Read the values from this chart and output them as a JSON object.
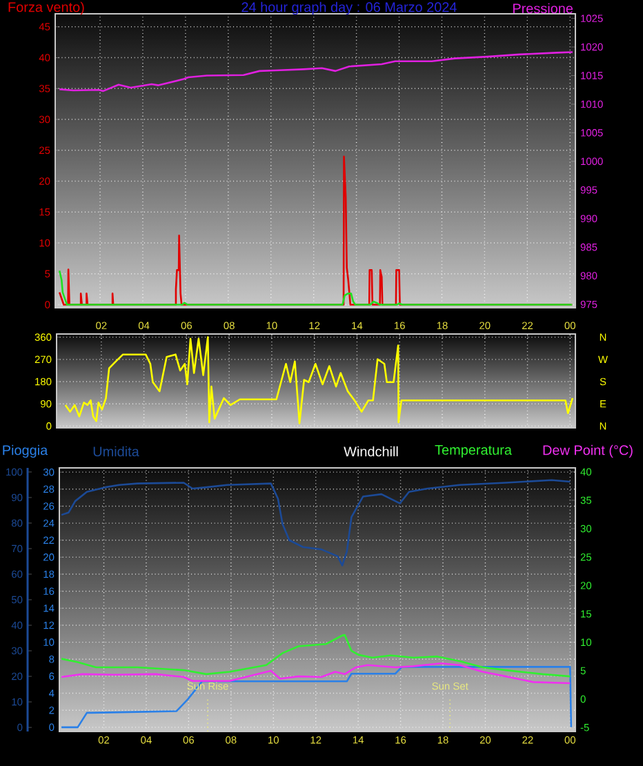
{
  "chart_data": [
    {
      "type": "line",
      "title": "24 hour graph day : 06 Marzo 2024",
      "ylabel": "Forza vento)",
      "y2label": "Pressione",
      "xlim": [
        "2024-03-05T23:54",
        "2024-03-07T00:15"
      ],
      "xticks": [
        {
          "value": "2024-03-06T02:00",
          "label": null
        },
        {
          "value": "2024-03-06T04:00",
          "label": null
        },
        {
          "value": "2024-03-06T06:00",
          "label": null
        },
        {
          "value": "2024-03-06T08:00",
          "label": null
        },
        {
          "value": "2024-03-06T10:00",
          "label": null
        },
        {
          "value": "2024-03-06T12:00",
          "label": null
        },
        {
          "value": "2024-03-06T14:00",
          "label": null
        },
        {
          "value": "2024-03-06T16:00",
          "label": null
        },
        {
          "value": "2024-03-06T18:00",
          "label": null
        },
        {
          "value": "2024-03-06T20:00",
          "label": null
        },
        {
          "value": "2024-03-06T22:00",
          "label": null
        },
        {
          "value": "2024-03-07T00:00",
          "label": null
        }
      ],
      "tick_labels": "y",
      "ylim": [
        -0.5,
        47.1
      ],
      "yticks": [
        0,
        5,
        10,
        15,
        20,
        25,
        30,
        35,
        40,
        45
      ],
      "y2lim": [
        974.4,
        1025.8
      ],
      "y2ticks": [
        975,
        980,
        985,
        990,
        995,
        1000,
        1005,
        1010,
        1015,
        1020,
        1025
      ],
      "grid": true,
      "series": [
        {
          "color": "#e00000",
          "x": [
            "2024-03-06T00:06",
            "2024-03-06T00:18",
            "2024-03-06T00:30",
            "2024-03-06T00:31",
            "2024-03-06T00:34",
            "2024-03-06T01:06",
            "2024-03-06T01:06",
            "2024-03-06T01:09",
            "2024-03-06T01:22",
            "2024-03-06T01:22",
            "2024-03-06T01:25",
            "2024-03-06T02:35",
            "2024-03-06T02:35",
            "2024-03-06T02:37",
            "2024-03-06T05:33",
            "2024-03-06T05:33",
            "2024-03-06T05:36",
            "2024-03-06T05:41",
            "2024-03-06T05:42",
            "2024-03-06T05:46",
            "2024-03-06T05:49",
            "2024-03-06T13:24",
            "2024-03-06T13:25",
            "2024-03-06T13:30",
            "2024-03-06T13:33",
            "2024-03-06T13:37",
            "2024-03-06T13:43",
            "2024-03-06T14:36",
            "2024-03-06T14:37",
            "2024-03-06T14:43",
            "2024-03-06T14:45",
            "2024-03-06T15:06",
            "2024-03-06T15:07",
            "2024-03-06T15:11",
            "2024-03-06T15:13",
            "2024-03-06T15:51",
            "2024-03-06T15:52",
            "2024-03-06T16:00",
            "2024-03-06T16:02",
            "2024-03-07T00:06"
          ],
          "values": [
            2,
            0,
            0,
            5.7,
            0,
            0,
            1.8,
            0,
            0,
            1.8,
            0,
            0,
            1.8,
            0,
            0,
            2.5,
            5.6,
            5.6,
            11.2,
            1.8,
            0,
            0,
            24,
            17.4,
            6,
            4,
            0,
            0,
            5.6,
            5.6,
            0,
            0,
            5.6,
            4.5,
            0,
            0,
            5.6,
            5.6,
            0,
            0
          ]
        },
        {
          "color": "#20e020",
          "x": [
            "2024-03-06T00:06",
            "2024-03-06T00:12",
            "2024-03-06T00:15",
            "2024-03-06T00:21",
            "2024-03-06T00:27",
            "2024-03-06T05:51",
            "2024-03-06T05:57",
            "2024-03-06T06:06",
            "2024-03-06T13:21",
            "2024-03-06T13:27",
            "2024-03-06T13:36",
            "2024-03-06T13:45",
            "2024-03-06T13:51",
            "2024-03-06T13:57",
            "2024-03-06T14:39",
            "2024-03-06T14:48",
            "2024-03-06T14:57",
            "2024-03-06T15:06",
            "2024-03-06T15:54",
            "2024-03-06T16:00",
            "2024-03-06T16:09",
            "2024-03-07T00:06"
          ],
          "values": [
            5.5,
            4,
            2,
            1,
            0,
            0,
            0.3,
            0,
            0,
            1.5,
            1.8,
            1.8,
            0.5,
            0,
            0,
            0.5,
            0.3,
            0,
            0,
            0.2,
            0,
            0
          ]
        },
        {
          "color": "#e020e0",
          "axis": "y2",
          "x": [
            "2024-03-06T00:06",
            "2024-03-06T00:45",
            "2024-03-06T01:56",
            "2024-03-06T02:09",
            "2024-03-06T02:52",
            "2024-03-06T03:26",
            "2024-03-06T04:25",
            "2024-03-06T04:44",
            "2024-03-06T05:55",
            "2024-03-06T06:08",
            "2024-03-06T07:00",
            "2024-03-06T08:43",
            "2024-03-06T09:28",
            "2024-03-06T10:13",
            "2024-03-06T11:31",
            "2024-03-06T12:23",
            "2024-03-06T13:01",
            "2024-03-06T13:40",
            "2024-03-06T15:11",
            "2024-03-06T15:49",
            "2024-03-06T17:32",
            "2024-03-06T18:37",
            "2024-03-06T20:08",
            "2024-03-06T21:38",
            "2024-03-06T23:22",
            "2024-03-07T00:07"
          ],
          "values": [
            1012.6,
            1012.4,
            1012.5,
            1012.3,
            1013.4,
            1012.9,
            1013.5,
            1013.3,
            1014.4,
            1014.7,
            1015.0,
            1015.1,
            1015.8,
            1015.9,
            1016.1,
            1016.3,
            1015.8,
            1016.6,
            1017.0,
            1017.5,
            1017.5,
            1018.0,
            1018.3,
            1018.7,
            1019.0,
            1019.1
          ]
        }
      ]
    },
    {
      "type": "line",
      "xlim": [
        "2024-03-05T23:54",
        "2024-03-07T00:15"
      ],
      "xticks": [
        {
          "value": "2024-03-06T02:00",
          "label": "02"
        },
        {
          "value": "2024-03-06T04:00",
          "label": "04"
        },
        {
          "value": "2024-03-06T06:00",
          "label": "06"
        },
        {
          "value": "2024-03-06T08:00",
          "label": "08"
        },
        {
          "value": "2024-03-06T10:00",
          "label": "10"
        },
        {
          "value": "2024-03-06T12:00",
          "label": "12"
        },
        {
          "value": "2024-03-06T14:00",
          "label": "14"
        },
        {
          "value": "2024-03-06T16:00",
          "label": "16"
        },
        {
          "value": "2024-03-06T18:00",
          "label": "18"
        },
        {
          "value": "2024-03-06T20:00",
          "label": "20"
        },
        {
          "value": "2024-03-06T22:00",
          "label": "22"
        },
        {
          "value": "2024-03-07T00:00",
          "label": "00"
        }
      ],
      "ylim": [
        -7.4,
        373
      ],
      "yticks": [
        0,
        90,
        180,
        270,
        360
      ],
      "grid": true,
      "annotations": [
        "N",
        "W",
        "S",
        "E",
        "N"
      ],
      "series": [
        {
          "color": "#ffff00",
          "x": [
            "2024-03-06T00:19",
            "2024-03-06T00:32",
            "2024-03-06T00:45",
            "2024-03-06T00:58",
            "2024-03-06T01:11",
            "2024-03-06T01:21",
            "2024-03-06T01:30",
            "2024-03-06T01:37",
            "2024-03-06T01:46",
            "2024-03-06T01:52",
            "2024-03-06T02:02",
            "2024-03-06T02:13",
            "2024-03-06T02:22",
            "2024-03-06T02:41",
            "2024-03-06T03:01",
            "2024-03-06T04:05",
            "2024-03-06T04:18",
            "2024-03-06T04:25",
            "2024-03-06T04:44",
            "2024-03-06T05:04",
            "2024-03-06T05:29",
            "2024-03-06T05:42",
            "2024-03-06T05:55",
            "2024-03-06T06:02",
            "2024-03-06T06:11",
            "2024-03-06T06:21",
            "2024-03-06T06:34",
            "2024-03-06T06:47",
            "2024-03-06T07:00",
            "2024-03-06T07:04",
            "2024-03-06T07:10",
            "2024-03-06T07:19",
            "2024-03-06T07:45",
            "2024-03-06T08:04",
            "2024-03-06T08:30",
            "2024-03-06T10:13",
            "2024-03-06T10:26",
            "2024-03-06T10:40",
            "2024-03-06T10:52",
            "2024-03-06T11:05",
            "2024-03-06T11:18",
            "2024-03-06T11:31",
            "2024-03-06T11:44",
            "2024-03-06T12:03",
            "2024-03-06T12:23",
            "2024-03-06T12:42",
            "2024-03-06T13:01",
            "2024-03-06T13:14",
            "2024-03-06T13:34",
            "2024-03-06T13:53",
            "2024-03-06T14:13",
            "2024-03-06T14:32",
            "2024-03-06T14:45",
            "2024-03-06T14:58",
            "2024-03-06T15:17",
            "2024-03-06T15:24",
            "2024-03-06T15:43",
            "2024-03-06T15:56",
            "2024-03-06T15:57",
            "2024-03-06T16:05",
            "2024-03-06T23:47",
            "2024-03-06T23:54",
            "2024-03-07T00:07"
          ],
          "values": [
            85,
            58,
            85,
            39,
            95,
            85,
            104,
            39,
            20,
            95,
            67,
            113,
            234,
            262,
            290,
            290,
            252,
            178,
            141,
            280,
            290,
            225,
            252,
            169,
            354,
            215,
            354,
            206,
            360,
            15,
            160,
            30,
            113,
            85,
            108,
            108,
            178,
            252,
            178,
            262,
            11,
            187,
            178,
            252,
            169,
            243,
            160,
            215,
            141,
            104,
            58,
            104,
            104,
            271,
            252,
            178,
            178,
            327,
            15,
            104,
            104,
            52,
            113
          ]
        }
      ]
    },
    {
      "type": "line",
      "xlim": [
        "2024-03-05T23:54",
        "2024-03-07T00:15"
      ],
      "xticks": [
        {
          "value": "2024-03-06T02:00",
          "label": "02"
        },
        {
          "value": "2024-03-06T04:00",
          "label": "04"
        },
        {
          "value": "2024-03-06T06:00",
          "label": "06"
        },
        {
          "value": "2024-03-06T08:00",
          "label": "08"
        },
        {
          "value": "2024-03-06T10:00",
          "label": "10"
        },
        {
          "value": "2024-03-06T12:00",
          "label": "12"
        },
        {
          "value": "2024-03-06T14:00",
          "label": "14"
        },
        {
          "value": "2024-03-06T16:00",
          "label": "16"
        },
        {
          "value": "2024-03-06T18:00",
          "label": "18"
        },
        {
          "value": "2024-03-06T20:00",
          "label": "20"
        },
        {
          "value": "2024-03-06T22:00",
          "label": "22"
        },
        {
          "value": "2024-03-07T00:00",
          "label": "00"
        }
      ],
      "ylim": [
        -1.6,
        101.6
      ],
      "yticks": [
        0,
        10,
        20,
        30,
        40,
        50,
        60,
        70,
        80,
        90,
        100
      ],
      "y3lim": [
        -0.5,
        30.5
      ],
      "y3ticks": [
        0,
        2,
        4,
        6,
        8,
        10,
        12,
        14,
        16,
        18,
        20,
        22,
        24,
        26,
        28,
        30
      ],
      "y2lim": [
        -5.7,
        40.7
      ],
      "y2ticks": [
        -5,
        0,
        5,
        10,
        15,
        20,
        25,
        30,
        35,
        40
      ],
      "grid": true,
      "legend": "top",
      "annotations": [
        "Windchill"
      ],
      "ref_lines": [
        {
          "axis": "x",
          "value": "2024-03-06T06:54",
          "label": "Sun Rise",
          "color": "#e8e880",
          "line_style": "dotted"
        },
        {
          "axis": "x",
          "value": "2024-03-06T18:20",
          "label": "Sun Set",
          "color": "#e8e880",
          "line_style": "dotted"
        }
      ],
      "series": [
        {
          "name": "Pioggia",
          "color": "#2a80e8",
          "axis": "y3",
          "x": [
            "2024-03-06T00:00",
            "2024-03-06T00:46",
            "2024-03-06T01:12",
            "2024-03-06T01:25",
            "2024-03-06T03:35",
            "2024-03-06T05:26",
            "2024-03-06T05:58",
            "2024-03-06T06:25",
            "2024-03-06T06:38",
            "2024-03-06T09:40",
            "2024-03-06T13:28",
            "2024-03-06T13:41",
            "2024-03-06T15:45",
            "2024-03-06T16:04",
            "2024-03-07T00:00",
            "2024-03-07T00:03"
          ],
          "values": [
            0,
            0,
            1.7,
            1.7,
            1.8,
            1.9,
            3.3,
            4.7,
            5.4,
            5.4,
            5.4,
            6.3,
            6.3,
            7.1,
            7.1,
            0
          ]
        },
        {
          "name": "Umidita",
          "color": "#1c4a96",
          "x": [
            "2024-03-06T00:00",
            "2024-03-06T00:20",
            "2024-03-06T00:39",
            "2024-03-06T01:12",
            "2024-03-06T02:04",
            "2024-03-06T02:43",
            "2024-03-06T03:35",
            "2024-03-06T05:46",
            "2024-03-06T06:11",
            "2024-03-06T06:50",
            "2024-03-06T07:49",
            "2024-03-06T09:53",
            "2024-03-06T10:13",
            "2024-03-06T10:26",
            "2024-03-06T10:45",
            "2024-03-06T11:24",
            "2024-03-06T12:16",
            "2024-03-06T13:02",
            "2024-03-06T13:15",
            "2024-03-06T13:28",
            "2024-03-06T13:41",
            "2024-03-06T14:14",
            "2024-03-06T15:06",
            "2024-03-06T15:58",
            "2024-03-06T16:24",
            "2024-03-06T17:16",
            "2024-03-06T18:47",
            "2024-03-06T20:58",
            "2024-03-06T23:08",
            "2024-03-07T00:00"
          ],
          "values": [
            83.2,
            84.1,
            88.6,
            92.2,
            94.0,
            94.9,
            95.5,
            95.8,
            93.5,
            94.0,
            94.9,
            95.5,
            89.5,
            79.6,
            73.3,
            70.6,
            69.7,
            67.0,
            63.4,
            68.8,
            82.3,
            90.4,
            91.3,
            87.7,
            92.2,
            93.5,
            94.9,
            95.8,
            96.8,
            96.2
          ]
        },
        {
          "name": "Temperatura",
          "color": "#30f030",
          "axis": "y2",
          "x": [
            "2024-03-06T00:00",
            "2024-03-06T00:46",
            "2024-03-06T01:38",
            "2024-03-06T03:35",
            "2024-03-06T05:46",
            "2024-03-06T06:50",
            "2024-03-06T07:56",
            "2024-03-06T09:40",
            "2024-03-06T10:26",
            "2024-03-06T11:11",
            "2024-03-06T12:29",
            "2024-03-06T13:15",
            "2024-03-06T13:22",
            "2024-03-06T13:41",
            "2024-03-06T14:01",
            "2024-03-06T14:40",
            "2024-03-06T15:32",
            "2024-03-06T16:37",
            "2024-03-06T17:42",
            "2024-03-06T18:47",
            "2024-03-06T19:53",
            "2024-03-06T20:58",
            "2024-03-06T22:42",
            "2024-03-07T00:00"
          ],
          "values": [
            7.1,
            6.5,
            5.6,
            5.6,
            5.1,
            4.4,
            4.8,
            6.0,
            8.1,
            9.3,
            9.7,
            11.2,
            11.3,
            8.5,
            7.8,
            7.3,
            7.7,
            7.3,
            7.5,
            6.7,
            5.6,
            5.1,
            4.4,
            4.0
          ]
        },
        {
          "name": "Dew Point (°C)",
          "color": "#f030f0",
          "axis": "y2",
          "x": [
            "2024-03-06T00:00",
            "2024-03-06T00:59",
            "2024-03-06T02:30",
            "2024-03-06T04:27",
            "2024-03-06T05:46",
            "2024-03-06T06:11",
            "2024-03-06T07:56",
            "2024-03-06T09:53",
            "2024-03-06T10:19",
            "2024-03-06T11:11",
            "2024-03-06T12:16",
            "2024-03-06T12:55",
            "2024-03-06T13:22",
            "2024-03-06T13:54",
            "2024-03-06T14:27",
            "2024-03-06T15:45",
            "2024-03-06T16:37",
            "2024-03-06T17:55",
            "2024-03-06T18:47",
            "2024-03-06T19:53",
            "2024-03-06T20:58",
            "2024-03-06T22:16",
            "2024-03-07T00:00"
          ],
          "values": [
            3.9,
            4.4,
            4.3,
            4.4,
            3.9,
            3.2,
            3.2,
            5.0,
            3.6,
            4.0,
            3.9,
            4.8,
            4.4,
            5.6,
            6.0,
            5.6,
            5.8,
            6.3,
            6.0,
            4.8,
            4.0,
            3.0,
            2.8
          ]
        }
      ]
    }
  ]
}
